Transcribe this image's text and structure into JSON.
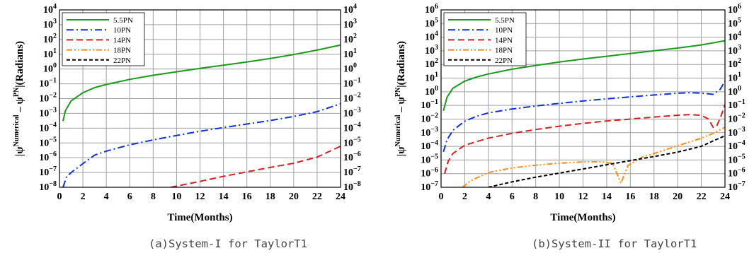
{
  "chart_data": [
    {
      "type": "line",
      "caption": "(a)System-I for TaylorT1",
      "xlabel": "Time(Months)",
      "ylabel": {
        "prefix": "|ψ",
        "sup1": "Numerical",
        "mid": " – ψ",
        "sup2": "PN",
        "suffix": "|(Radians)"
      },
      "xlim": [
        0,
        24
      ],
      "xticks": [
        0,
        2,
        4,
        6,
        8,
        10,
        12,
        14,
        16,
        18,
        20,
        22,
        24
      ],
      "yscale": "log",
      "ylim_exp": [
        -8,
        4
      ],
      "ytick_exponents": [
        -8,
        -7,
        -6,
        -5,
        -4,
        -3,
        -2,
        -1,
        0,
        1,
        2,
        3,
        4
      ],
      "right_axis_mirrored": true,
      "grid": true,
      "legend_position": "top-left",
      "series": [
        {
          "name": "5.5PN",
          "color": "#1a9a1a",
          "dash": "solid",
          "points": [
            [
              0.3,
              0.0003
            ],
            [
              0.5,
              0.0015
            ],
            [
              1,
              0.007
            ],
            [
              2,
              0.025
            ],
            [
              3,
              0.055
            ],
            [
              4,
              0.09
            ],
            [
              6,
              0.2
            ],
            [
              8,
              0.38
            ],
            [
              10,
              0.65
            ],
            [
              12,
              1.1
            ],
            [
              14,
              1.8
            ],
            [
              16,
              3.0
            ],
            [
              18,
              5.2
            ],
            [
              20,
              9.5
            ],
            [
              22,
              19
            ],
            [
              24,
              42
            ]
          ]
        },
        {
          "name": "10PN",
          "color": "#1030e0",
          "dash": "dashdot",
          "points": [
            [
              0.3,
              1e-08
            ],
            [
              0.6,
              5e-08
            ],
            [
              1,
              1e-07
            ],
            [
              2,
              4e-07
            ],
            [
              3,
              1.5e-06
            ],
            [
              4,
              2.8e-06
            ],
            [
              6,
              7.5e-06
            ],
            [
              8,
              1.6e-05
            ],
            [
              10,
              3.2e-05
            ],
            [
              12,
              6.2e-05
            ],
            [
              14,
              0.00011
            ],
            [
              16,
              0.00019
            ],
            [
              18,
              0.00033
            ],
            [
              20,
              0.00062
            ],
            [
              22,
              0.0013
            ],
            [
              24,
              0.0045
            ]
          ]
        },
        {
          "name": "14PN",
          "color": "#d42020",
          "dash": "dash",
          "points": [
            [
              9.5,
              1e-08
            ],
            [
              12,
              2.5e-08
            ],
            [
              14,
              5.5e-08
            ],
            [
              16,
              1.1e-07
            ],
            [
              18,
              2.2e-07
            ],
            [
              20,
              4.2e-07
            ],
            [
              22,
              1.1e-06
            ],
            [
              24,
              6e-06
            ]
          ]
        },
        {
          "name": "18PN",
          "color": "#ff8c1a",
          "dash": "dashdotdot",
          "points": []
        },
        {
          "name": "22PN",
          "color": "#000000",
          "dash": "shortdash",
          "points": []
        }
      ]
    },
    {
      "type": "line",
      "caption": "(b)System-II for TaylorT1",
      "xlabel": "Time(Months)",
      "ylabel": {
        "prefix": "|ψ",
        "sup1": "Numerical",
        "mid": " – ψ",
        "sup2": "PN",
        "suffix": "|(Radians)"
      },
      "xlim": [
        0,
        24
      ],
      "xticks": [
        0,
        2,
        4,
        6,
        8,
        10,
        12,
        14,
        16,
        18,
        20,
        22,
        24
      ],
      "yscale": "log",
      "ylim_exp": [
        -7,
        6
      ],
      "ytick_exponents": [
        -7,
        -6,
        -5,
        -4,
        -3,
        -2,
        -1,
        0,
        1,
        2,
        3,
        4,
        5,
        6
      ],
      "right_axis_mirrored": true,
      "grid": true,
      "legend_position": "top-left",
      "series": [
        {
          "name": "5.5PN",
          "color": "#1a9a1a",
          "dash": "solid",
          "points": [
            [
              0.2,
              0.04
            ],
            [
              0.5,
              0.4
            ],
            [
              1,
              1.8
            ],
            [
              2,
              6
            ],
            [
              3,
              12
            ],
            [
              4,
              20
            ],
            [
              6,
              45
            ],
            [
              8,
              85
            ],
            [
              10,
              150
            ],
            [
              12,
              250
            ],
            [
              14,
              400
            ],
            [
              16,
              640
            ],
            [
              18,
              1000
            ],
            [
              20,
              1600
            ],
            [
              22,
              2700
            ],
            [
              24,
              5500
            ]
          ]
        },
        {
          "name": "10PN",
          "color": "#1030e0",
          "dash": "dashdot",
          "points": [
            [
              0.2,
              4e-05
            ],
            [
              0.5,
              0.0003
            ],
            [
              1,
              0.0015
            ],
            [
              2,
              0.007
            ],
            [
              3,
              0.016
            ],
            [
              4,
              0.028
            ],
            [
              6,
              0.055
            ],
            [
              8,
              0.09
            ],
            [
              10,
              0.14
            ],
            [
              12,
              0.21
            ],
            [
              14,
              0.3
            ],
            [
              16,
              0.42
            ],
            [
              18,
              0.58
            ],
            [
              20,
              0.78
            ],
            [
              21,
              0.85
            ],
            [
              22,
              0.8
            ],
            [
              23,
              0.65
            ],
            [
              23.6,
              1.5
            ],
            [
              24,
              6
            ]
          ]
        },
        {
          "name": "14PN",
          "color": "#d42020",
          "dash": "dash",
          "points": [
            [
              0.3,
              1e-06
            ],
            [
              0.6,
              8e-06
            ],
            [
              1,
              3e-05
            ],
            [
              2,
              0.00012
            ],
            [
              4,
              0.0004
            ],
            [
              6,
              0.0009
            ],
            [
              8,
              0.0017
            ],
            [
              10,
              0.003
            ],
            [
              12,
              0.0048
            ],
            [
              14,
              0.0072
            ],
            [
              16,
              0.01
            ],
            [
              18,
              0.014
            ],
            [
              20,
              0.019
            ],
            [
              21,
              0.021
            ],
            [
              22,
              0.019
            ],
            [
              22.6,
              0.01
            ],
            [
              23,
              0.0025
            ],
            [
              23.3,
              0.003
            ],
            [
              23.7,
              0.02
            ],
            [
              24,
              0.12
            ]
          ]
        },
        {
          "name": "18PN",
          "color": "#ff8c1a",
          "dash": "dashdotdot",
          "points": [
            [
              1.8,
              1e-07
            ],
            [
              2.5,
              3e-07
            ],
            [
              4,
              1.2e-06
            ],
            [
              6,
              2.6e-06
            ],
            [
              8,
              4.2e-06
            ],
            [
              10,
              5.8e-06
            ],
            [
              12,
              7.2e-06
            ],
            [
              13.5,
              7.5e-06
            ],
            [
              14.5,
              5.5e-06
            ],
            [
              15.2,
              2e-07
            ],
            [
              15.8,
              4e-06
            ],
            [
              17,
              1.6e-05
            ],
            [
              18,
              3e-05
            ],
            [
              20,
              0.00011
            ],
            [
              22,
              0.0004
            ],
            [
              23,
              0.0009
            ],
            [
              23.5,
              0.0015
            ],
            [
              24,
              0.0025
            ]
          ]
        },
        {
          "name": "22PN",
          "color": "#000000",
          "dash": "shortdash",
          "points": [
            [
              4,
              1e-07
            ],
            [
              6,
              2.5e-07
            ],
            [
              8,
              5.5e-07
            ],
            [
              10,
              1.1e-06
            ],
            [
              12,
              2.2e-06
            ],
            [
              14,
              4.5e-06
            ],
            [
              16,
              9e-06
            ],
            [
              18,
              1.8e-05
            ],
            [
              20,
              3.8e-05
            ],
            [
              22,
              0.0001
            ],
            [
              23,
              0.00025
            ],
            [
              24,
              0.0006
            ]
          ]
        }
      ]
    }
  ]
}
